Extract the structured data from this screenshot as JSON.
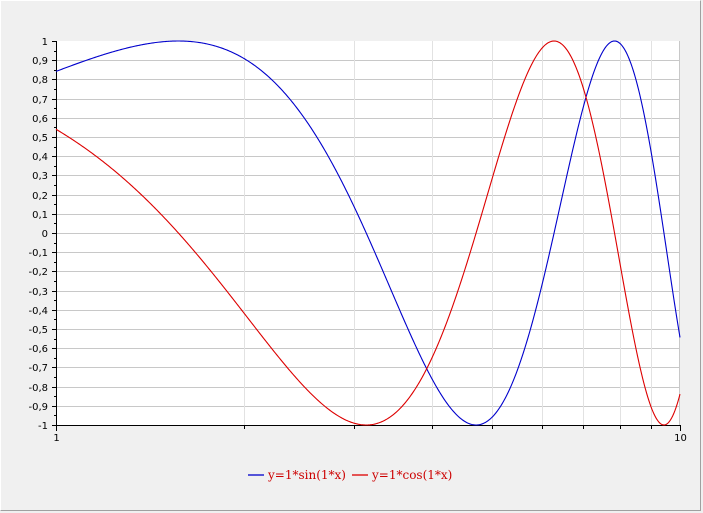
{
  "chart_data": {
    "type": "line",
    "title": "",
    "xlabel": "",
    "ylabel": "",
    "x_scale": "log",
    "xlim": [
      1,
      10
    ],
    "ylim": [
      -1,
      1
    ],
    "x_tick_labels": [
      "1",
      "10"
    ],
    "y_tick_labels": [
      "1",
      "0,9",
      "0,8",
      "0,7",
      "0,6",
      "0,5",
      "0,4",
      "0,3",
      "0,2",
      "0,1",
      "0",
      "-0,1",
      "-0,2",
      "-0,3",
      "-0,4",
      "-0,5",
      "-0,6",
      "-0,7",
      "-0,8",
      "-0,9",
      "-1"
    ],
    "grid": true,
    "legend_position": "bottom-center",
    "series": [
      {
        "name": "y=1*sin(1*x)",
        "color": "#0000cc",
        "function": "sin",
        "x": [
          1,
          1.5,
          2,
          2.5,
          3,
          3.5,
          4,
          4.5,
          5,
          5.5,
          6,
          6.5,
          7,
          7.5,
          8,
          8.5,
          9,
          9.5,
          10
        ],
        "y": [
          0.841,
          0.997,
          0.909,
          0.598,
          0.141,
          -0.351,
          -0.757,
          -0.978,
          -0.959,
          -0.706,
          -0.279,
          0.215,
          0.657,
          0.938,
          0.989,
          0.798,
          0.412,
          -0.075,
          -0.544
        ]
      },
      {
        "name": "y=1*cos(1*x)",
        "color": "#dd0000",
        "function": "cos",
        "x": [
          1,
          1.5,
          2,
          2.5,
          3,
          3.5,
          4,
          4.5,
          5,
          5.5,
          6,
          6.5,
          7,
          7.5,
          8,
          8.5,
          9,
          9.5,
          10
        ],
        "y": [
          0.54,
          0.071,
          -0.416,
          -0.801,
          -0.99,
          -0.936,
          -0.654,
          -0.211,
          0.284,
          0.709,
          0.96,
          0.977,
          0.754,
          0.347,
          -0.146,
          -0.602,
          -0.911,
          -0.997,
          -0.839
        ]
      }
    ]
  }
}
